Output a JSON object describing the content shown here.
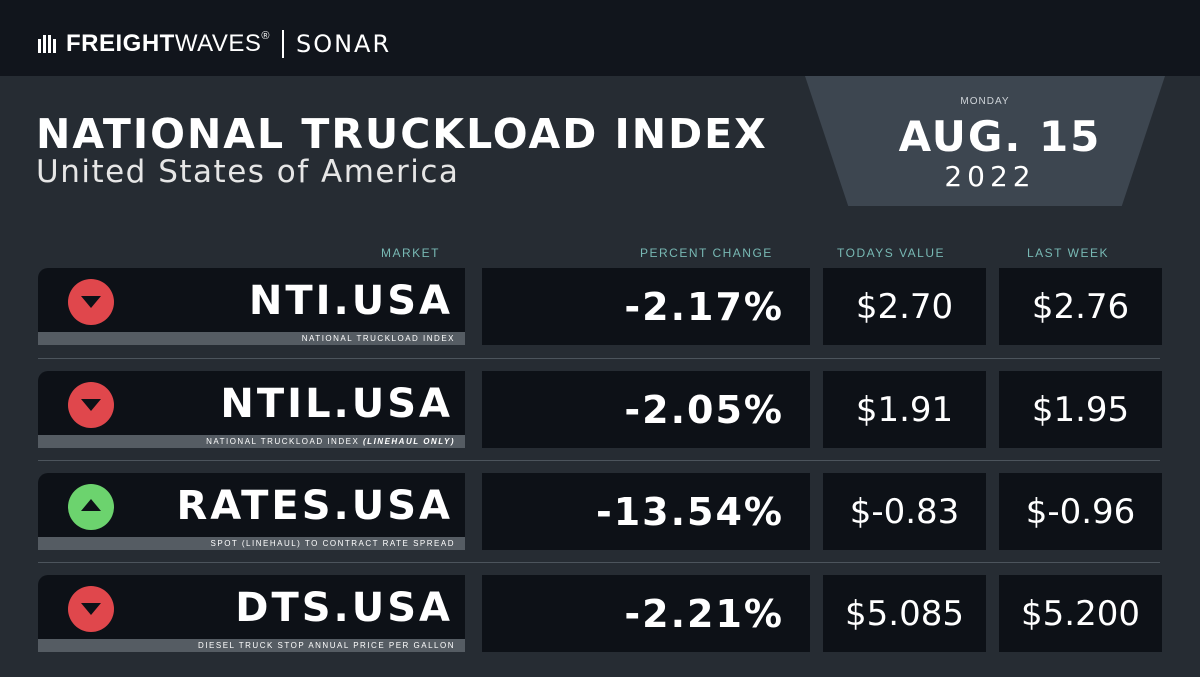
{
  "header": {
    "brand_bold": "FREIGHT",
    "brand_light": "WAVES",
    "trademark": "®",
    "product": "SONAR"
  },
  "title": "NATIONAL TRUCKLOAD INDEX",
  "subtitle": "United States of America",
  "date": {
    "day": "MONDAY",
    "main": "AUG. 15",
    "year": "2022"
  },
  "columns": {
    "market": "MARKET",
    "percent_change": "PERCENT CHANGE",
    "todays_value": "TODAYS VALUE",
    "last_week": "LAST WEEK"
  },
  "rows": [
    {
      "symbol": "NTI.USA",
      "description": "NATIONAL TRUCKLOAD INDEX",
      "description_italic": "",
      "trend": "down",
      "percent_change": "-2.17%",
      "todays_value": "$2.70",
      "last_week": "$2.76"
    },
    {
      "symbol": "NTIL.USA",
      "description": "NATIONAL TRUCKLOAD INDEX ",
      "description_italic": "(LINEHAUL ONLY)",
      "trend": "down",
      "percent_change": "-2.05%",
      "todays_value": "$1.91",
      "last_week": "$1.95"
    },
    {
      "symbol": "RATES.USA",
      "description": "SPOT (LINEHAUL) TO CONTRACT RATE SPREAD",
      "description_italic": "",
      "trend": "up",
      "percent_change": "-13.54%",
      "todays_value": "$-0.83",
      "last_week": "$-0.96"
    },
    {
      "symbol": "DTS.USA",
      "description": "DIESEL TRUCK STOP ANNUAL PRICE PER GALLON",
      "description_italic": "",
      "trend": "down",
      "percent_change": "-2.21%",
      "todays_value": "$5.085",
      "last_week": "$5.200"
    }
  ],
  "colors": {
    "down": "#e0474c",
    "up": "#6cd36e",
    "header_text": "#78b9b4",
    "background": "#262c33",
    "card": "#0d1117"
  }
}
